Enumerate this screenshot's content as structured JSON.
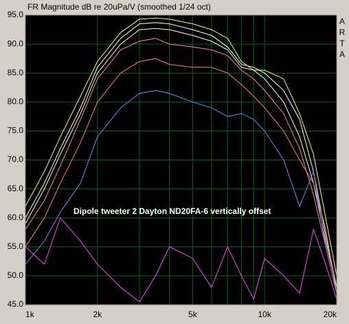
{
  "chart_data": {
    "type": "line",
    "title": "FR Magnitude dB re 20uPa/V (smoothed 1/24 oct)",
    "side_label": "ARTA",
    "annotation": "Dipole tweeter 2 Dayton ND20FA-6 vertically offset",
    "x_log": true,
    "grid": true,
    "grid_color": "#00641e",
    "background": "#000000",
    "xlim": [
      1000,
      20000
    ],
    "ylim": [
      45,
      95
    ],
    "xticks": [
      {
        "value": 1000,
        "label": "1k"
      },
      {
        "value": 2000,
        "label": "2k"
      },
      {
        "value": 5000,
        "label": "5k"
      },
      {
        "value": 10000,
        "label": "10k"
      },
      {
        "value": 20000,
        "label": "20k"
      }
    ],
    "x_minor_grid": [
      3000,
      4000,
      6000,
      7000,
      8000,
      9000
    ],
    "yticks": [
      {
        "value": 45,
        "label": "45.0"
      },
      {
        "value": 50,
        "label": "50.0"
      },
      {
        "value": 55,
        "label": "55.0"
      },
      {
        "value": 60,
        "label": "60.0"
      },
      {
        "value": 65,
        "label": "65.0"
      },
      {
        "value": 70,
        "label": "70.0"
      },
      {
        "value": 75,
        "label": "75.0"
      },
      {
        "value": 80,
        "label": "80.0"
      },
      {
        "value": 85,
        "label": "85.0"
      },
      {
        "value": 90,
        "label": "90.0"
      },
      {
        "value": 95,
        "label": "95.0"
      }
    ],
    "x": [
      1000,
      1200,
      1400,
      1700,
      2000,
      2500,
      3000,
      3500,
      4000,
      5000,
      6000,
      7000,
      8000,
      9000,
      10000,
      12000,
      14000,
      16000,
      18000,
      20000
    ],
    "series": [
      {
        "color": "#ffff40",
        "values": [
          62,
          68,
          74,
          81,
          87,
          92,
          94.3,
          94.5,
          94.3,
          93.5,
          92.5,
          91,
          87,
          85.5,
          85.5,
          84,
          78,
          71,
          60,
          50
        ]
      },
      {
        "color": "#ffffff",
        "values": [
          60,
          66,
          72,
          79,
          86,
          91,
          93.5,
          93.7,
          93.5,
          92.5,
          91.5,
          89.5,
          86.5,
          86,
          85,
          82,
          77,
          68,
          57,
          48
        ]
      },
      {
        "color": "#ffffc0",
        "values": [
          59,
          65,
          71,
          78,
          85,
          90,
          92.5,
          92.7,
          92.5,
          91.5,
          90.5,
          89,
          86,
          85.5,
          84,
          80,
          74,
          66,
          56,
          48
        ]
      },
      {
        "color": "#ff80c0",
        "values": [
          58,
          63,
          69,
          77,
          84,
          89,
          90.5,
          91,
          90,
          89.5,
          89,
          88,
          85.5,
          84,
          82,
          78,
          72,
          64,
          55,
          47
        ]
      },
      {
        "color": "#ff8060",
        "values": [
          55,
          60,
          66,
          73,
          80,
          85,
          87,
          87.5,
          86.5,
          86,
          86,
          85,
          83,
          81,
          79,
          75,
          70,
          66,
          58,
          47
        ]
      },
      {
        "color": "#8080ff",
        "values": [
          52,
          56,
          61,
          66,
          74,
          79,
          81.5,
          82,
          81.5,
          80,
          79,
          77.5,
          78,
          77,
          75,
          70,
          62,
          68,
          55,
          47
        ]
      },
      {
        "color": "#ff40ff",
        "values": [
          55,
          52,
          60,
          56,
          52,
          48,
          45.5,
          50,
          55,
          53,
          48,
          55,
          50,
          46,
          53,
          50,
          47,
          58,
          52,
          46
        ]
      }
    ]
  }
}
